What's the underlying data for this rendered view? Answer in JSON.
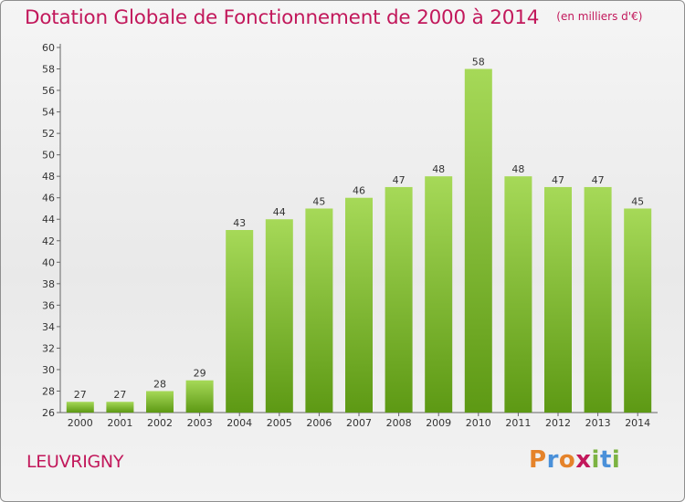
{
  "header": {
    "title": "Dotation Globale de Fonctionnement de 2000 à 2014",
    "subtitle": "(en milliers d'€)"
  },
  "footer": {
    "commune": "LEUVRIGNY",
    "logo_text": "Proxiti",
    "logo_letters": [
      {
        "char": "P",
        "color": "#e5832a"
      },
      {
        "char": "r",
        "color": "#4a90d9"
      },
      {
        "char": "o",
        "color": "#e5832a"
      },
      {
        "char": "x",
        "color": "#c2185b"
      },
      {
        "char": "i",
        "color": "#7cb342"
      },
      {
        "char": "t",
        "color": "#4a90d9"
      },
      {
        "char": "i",
        "color": "#7cb342"
      }
    ]
  },
  "colors": {
    "bar_light": "#9fd24f",
    "bar_dark": "#5f9a16",
    "title": "#c2185b",
    "label": "#333333"
  },
  "chart_data": {
    "type": "bar",
    "title": "Dotation Globale de Fonctionnement de 2000 à 2014",
    "subtitle": "(en milliers d'€)",
    "categories": [
      "2000",
      "2001",
      "2002",
      "2003",
      "2004",
      "2005",
      "2006",
      "2007",
      "2008",
      "2009",
      "2010",
      "2011",
      "2012",
      "2013",
      "2014"
    ],
    "values": [
      27,
      27,
      28,
      29,
      43,
      44,
      45,
      46,
      47,
      48,
      58,
      48,
      47,
      47,
      45
    ],
    "ylim": [
      26,
      60
    ],
    "yticks": [
      26,
      28,
      30,
      32,
      34,
      36,
      38,
      40,
      42,
      44,
      46,
      48,
      50,
      52,
      54,
      56,
      58,
      60
    ],
    "grid": false,
    "legend": "none"
  }
}
